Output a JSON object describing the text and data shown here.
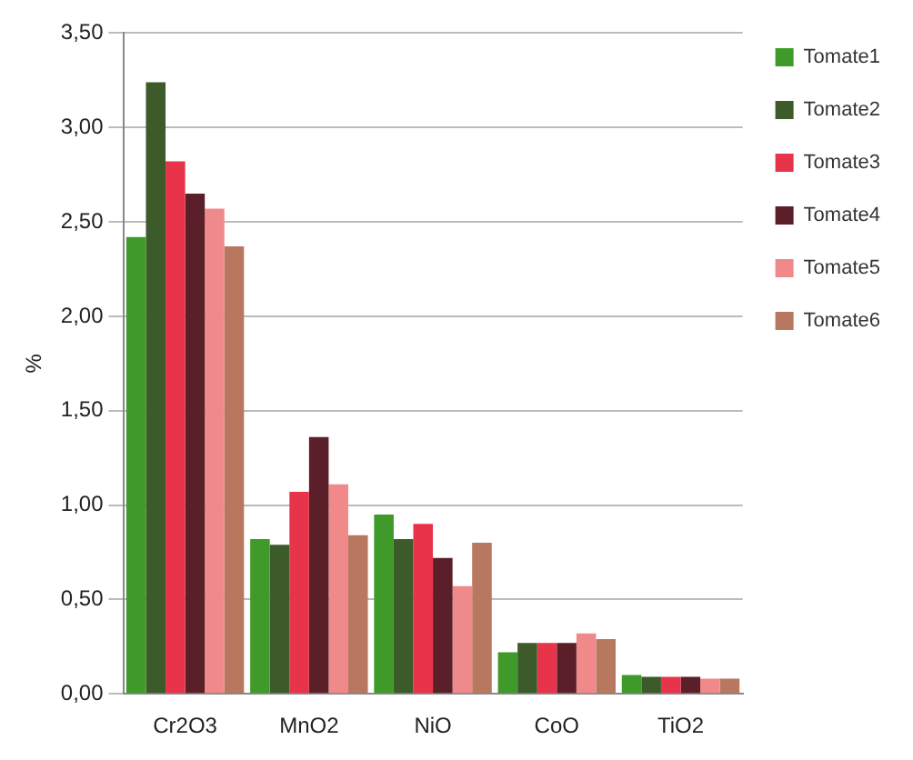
{
  "chart_data": {
    "type": "bar",
    "ylabel": "%",
    "categories": [
      "Cr2O3",
      "MnO2",
      "NiO",
      "CoO",
      "TiO2"
    ],
    "series": [
      {
        "name": "Tomate1",
        "color": "#3f9a2a",
        "values": [
          2.42,
          0.82,
          0.95,
          0.22,
          0.1
        ]
      },
      {
        "name": "Tomate2",
        "color": "#3d5a2a",
        "values": [
          3.24,
          0.79,
          0.82,
          0.27,
          0.09
        ]
      },
      {
        "name": "Tomate3",
        "color": "#e8344a",
        "values": [
          2.82,
          1.07,
          0.9,
          0.27,
          0.09
        ]
      },
      {
        "name": "Tomate4",
        "color": "#5a1f28",
        "values": [
          2.65,
          1.36,
          0.72,
          0.27,
          0.09
        ]
      },
      {
        "name": "Tomate5",
        "color": "#f08a8a",
        "values": [
          2.57,
          1.11,
          0.57,
          0.32,
          0.08
        ]
      },
      {
        "name": "Tomate6",
        "color": "#b87860",
        "values": [
          2.37,
          0.84,
          0.8,
          0.29,
          0.08
        ]
      }
    ],
    "ylim": [
      0,
      3.5
    ],
    "yticks": [
      {
        "value": 0,
        "label": "0,00"
      },
      {
        "value": 0.5,
        "label": "0,50"
      },
      {
        "value": 1,
        "label": "1,00"
      },
      {
        "value": 1.5,
        "label": "1,50"
      },
      {
        "value": 2,
        "label": "2,00"
      },
      {
        "value": 2.5,
        "label": "2,50"
      },
      {
        "value": 3,
        "label": "3,00"
      },
      {
        "value": 3.5,
        "label": "3,50"
      }
    ],
    "grid": "y",
    "legend": "top right"
  }
}
